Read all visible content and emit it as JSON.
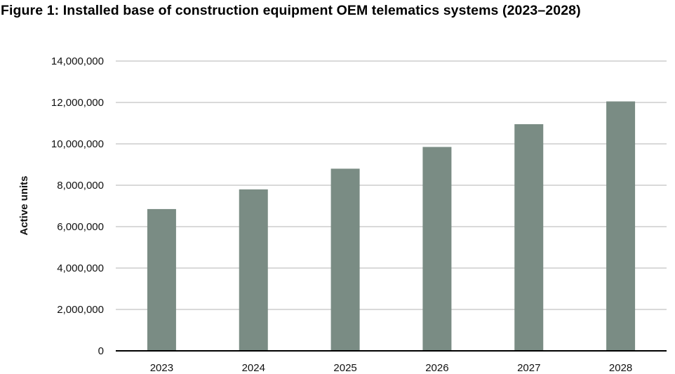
{
  "chart_data": {
    "type": "bar",
    "title": "Figure 1: Installed base of construction equipment OEM telematics systems (2023–2028)",
    "xlabel": "",
    "ylabel": "Active units",
    "categories": [
      "2023",
      "2024",
      "2025",
      "2026",
      "2027",
      "2028"
    ],
    "values": [
      6850000,
      7800000,
      8800000,
      9850000,
      10950000,
      12050000
    ],
    "ylim": [
      0,
      14000000
    ],
    "yticks": [
      0,
      2000000,
      4000000,
      6000000,
      8000000,
      10000000,
      12000000,
      14000000
    ],
    "ytick_labels": [
      "0",
      "2,000,000",
      "4,000,000",
      "6,000,000",
      "8,000,000",
      "10,000,000",
      "12,000,000",
      "14,000,000"
    ],
    "grid": true,
    "legend": "none",
    "colors": {
      "bar": "#7a8c84",
      "grid": "#d9d9d9",
      "axis": "#000000"
    }
  }
}
